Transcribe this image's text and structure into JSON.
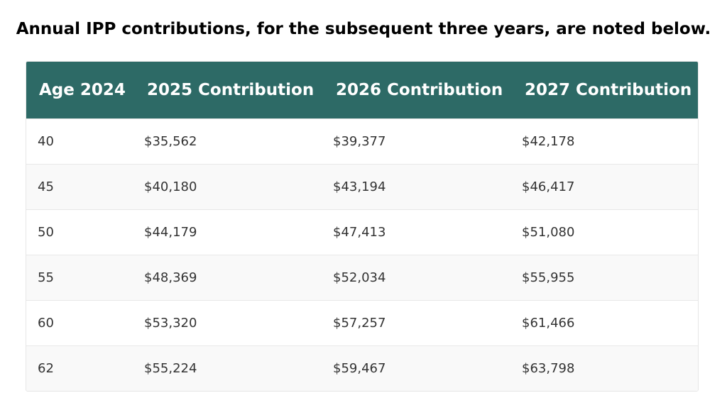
{
  "title": "Annual IPP contributions, for the subsequent three years, are noted below.",
  "table": {
    "headers": [
      "Age 2024",
      "2025 Contribution",
      "2026 Contribution",
      "2027 Contribution"
    ],
    "rows": [
      [
        "40",
        "$35,562",
        "$39,377",
        "$42,178"
      ],
      [
        "45",
        "$40,180",
        "$43,194",
        "$46,417"
      ],
      [
        "50",
        "$44,179",
        "$47,413",
        "$51,080"
      ],
      [
        "55",
        "$48,369",
        "$52,034",
        "$55,955"
      ],
      [
        "60",
        "$53,320",
        "$57,257",
        "$61,466"
      ],
      [
        "62",
        "$55,224",
        "$59,467",
        "$63,798"
      ]
    ],
    "header_color": "#2d6a66"
  }
}
